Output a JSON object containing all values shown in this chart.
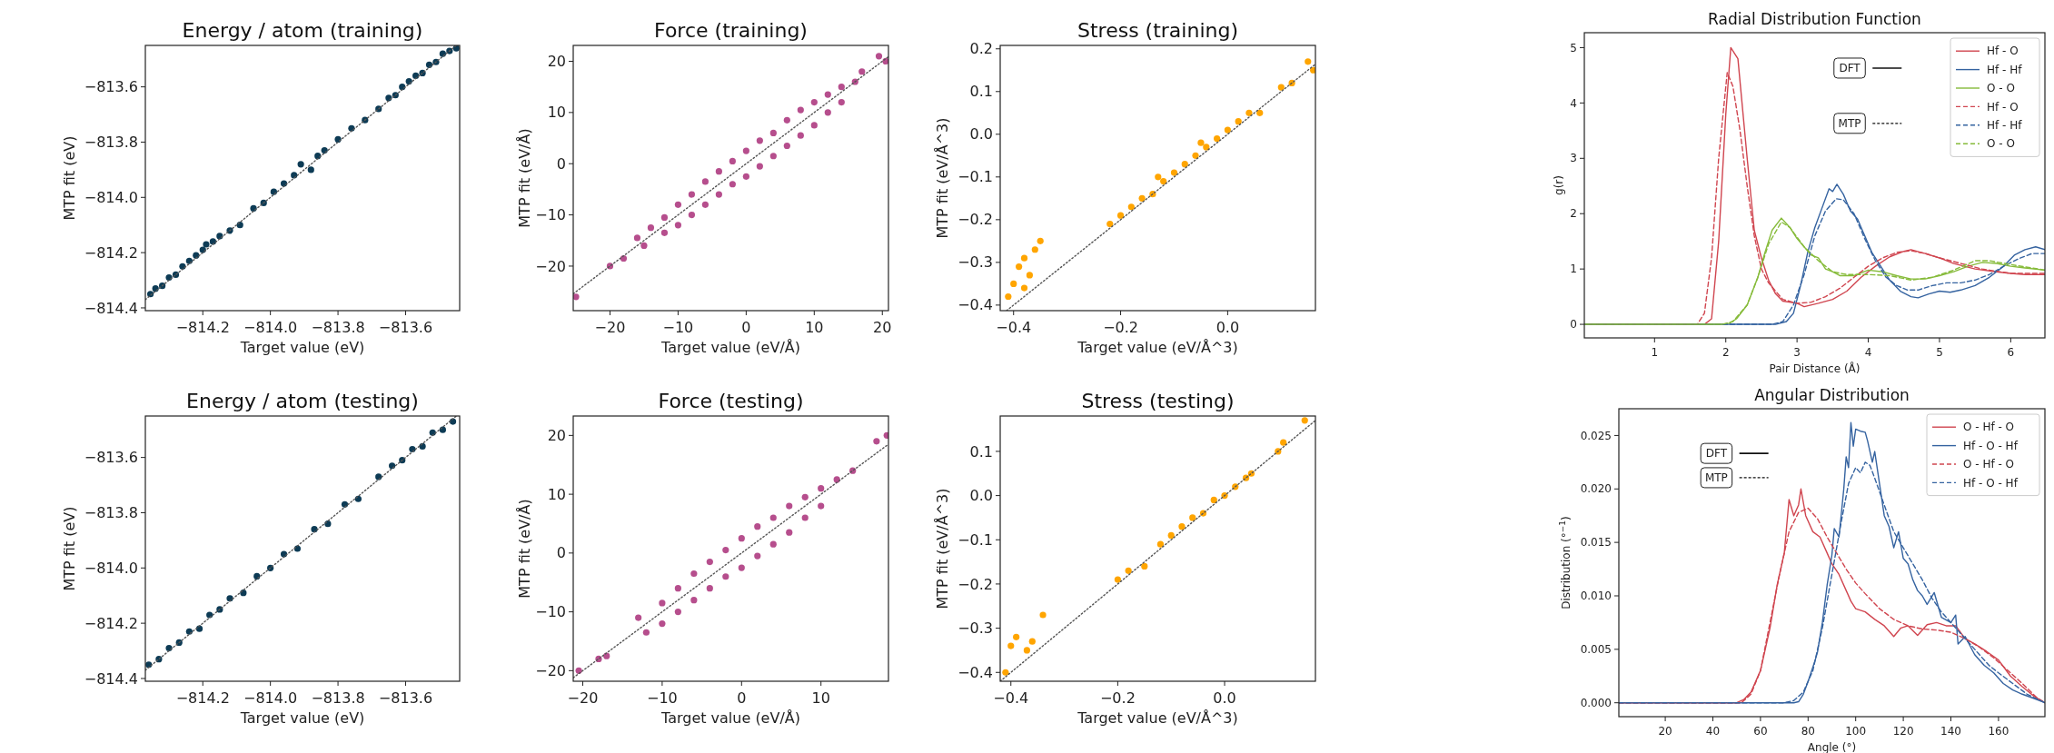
{
  "chart_data": [
    {
      "type": "scatter",
      "title": "Energy / atom (training)",
      "xlabel": "Target value (eV)",
      "ylabel": "MTP fit (eV)",
      "xlim": [
        -814.37,
        -813.44
      ],
      "ylim": [
        -814.41,
        -813.45
      ],
      "xticks": [
        {
          "value": -814.2,
          "label": "−814.2"
        },
        {
          "value": -814.0,
          "label": "−814.0"
        },
        {
          "value": -813.8,
          "label": "−813.8"
        },
        {
          "value": -813.6,
          "label": "−813.6"
        }
      ],
      "yticks": [
        {
          "value": -814.4,
          "label": "−814.4"
        },
        {
          "value": -814.2,
          "label": "−814.2"
        },
        {
          "value": -814.0,
          "label": "−814.0"
        },
        {
          "value": -813.8,
          "label": "−813.8"
        },
        {
          "value": -813.6,
          "label": "−813.6"
        }
      ],
      "series": [
        {
          "marker": "circle",
          "color": "#0d3b55",
          "x": [
            -814.355,
            -814.34,
            -814.32,
            -814.3,
            -814.28,
            -814.26,
            -814.24,
            -814.22,
            -814.2,
            -814.19,
            -814.17,
            -814.15,
            -814.12,
            -814.09,
            -814.05,
            -814.02,
            -813.99,
            -813.96,
            -813.93,
            -813.91,
            -813.88,
            -813.86,
            -813.84,
            -813.8,
            -813.76,
            -813.72,
            -813.68,
            -813.65,
            -813.63,
            -813.61,
            -813.59,
            -813.57,
            -813.55,
            -813.53,
            -813.51,
            -813.49,
            -813.47,
            -813.45
          ],
          "values": [
            -814.35,
            -814.33,
            -814.32,
            -814.29,
            -814.28,
            -814.25,
            -814.23,
            -814.21,
            -814.19,
            -814.17,
            -814.16,
            -814.14,
            -814.12,
            -814.1,
            -814.04,
            -814.02,
            -813.98,
            -813.95,
            -813.92,
            -813.88,
            -813.9,
            -813.85,
            -813.83,
            -813.79,
            -813.75,
            -813.72,
            -813.68,
            -813.64,
            -813.63,
            -813.6,
            -813.58,
            -813.56,
            -813.55,
            -813.52,
            -813.51,
            -813.48,
            -813.47,
            -813.46
          ]
        },
        {
          "type": "line",
          "line_style": "dotted",
          "color": "#555555",
          "x": [
            -814.37,
            -813.45
          ],
          "values": [
            -814.37,
            -813.45
          ]
        }
      ]
    },
    {
      "type": "scatter",
      "title": "Force (training)",
      "xlabel": "Target value (eV/Å)",
      "ylabel": "MTP fit (eV/Å)",
      "xlim": [
        -25.4,
        20.9
      ],
      "ylim": [
        -28.7,
        23.1
      ],
      "xticks": [
        {
          "value": -20,
          "label": "−20"
        },
        {
          "value": -10,
          "label": "−10"
        },
        0,
        10,
        20
      ],
      "yticks": [
        {
          "value": -20,
          "label": "−20"
        },
        {
          "value": -10,
          "label": "−10"
        },
        0,
        10,
        20
      ],
      "series": [
        {
          "marker": "circle",
          "color": "#b64e8d",
          "x": [
            -25,
            -20,
            -18,
            -16,
            -15,
            -14,
            -12,
            -12,
            -10,
            -10,
            -8,
            -8,
            -6,
            -6,
            -4,
            -4,
            -2,
            -2,
            0,
            0,
            2,
            2,
            4,
            4,
            6,
            6,
            8,
            8,
            10,
            10,
            12,
            12,
            14,
            14,
            16,
            17,
            19.5,
            20.5
          ],
          "values": [
            -26,
            -20,
            -18.5,
            -14.5,
            -16,
            -12.5,
            -10.5,
            -13.5,
            -8,
            -12,
            -6,
            -10,
            -3.5,
            -8,
            -1.5,
            -6,
            0.5,
            -4,
            2.5,
            -2.5,
            4.5,
            -0.5,
            6,
            1.5,
            8.5,
            3.5,
            10.5,
            5.5,
            12,
            7.5,
            13.5,
            10,
            15,
            12,
            16,
            18,
            21,
            20
          ]
        },
        {
          "type": "line",
          "line_style": "dotted",
          "color": "#555555",
          "x": [
            -25.4,
            20.9
          ],
          "values": [
            -25.4,
            20.9
          ]
        }
      ]
    },
    {
      "type": "scatter",
      "title": "Stress (training)",
      "xlabel": "Target value (eV/Å^3)",
      "ylabel": "MTP fit (eV/Å^3)",
      "xlim": [
        -0.425,
        0.164
      ],
      "ylim": [
        -0.413,
        0.208
      ],
      "xticks": [
        {
          "value": -0.4,
          "label": "−0.4"
        },
        {
          "value": -0.2,
          "label": "−0.2"
        },
        {
          "value": 0,
          "label": "0.0"
        }
      ],
      "yticks": [
        {
          "value": -0.4,
          "label": "−0.4"
        },
        {
          "value": -0.3,
          "label": "−0.3"
        },
        {
          "value": -0.2,
          "label": "−0.2"
        },
        {
          "value": -0.1,
          "label": "−0.1"
        },
        {
          "value": 0,
          "label": "0.0"
        },
        0.1,
        0.2
      ],
      "series": [
        {
          "marker": "circle",
          "color": "#ffa500",
          "x": [
            -0.41,
            -0.4,
            -0.39,
            -0.38,
            -0.37,
            -0.36,
            -0.35,
            -0.38,
            -0.22,
            -0.2,
            -0.18,
            -0.16,
            -0.14,
            -0.12,
            -0.1,
            -0.08,
            -0.06,
            -0.04,
            -0.02,
            0,
            0.02,
            0.04,
            0.06,
            -0.13,
            -0.05,
            0.1,
            0.12,
            0.15,
            0.16
          ],
          "values": [
            -0.38,
            -0.35,
            -0.31,
            -0.29,
            -0.33,
            -0.27,
            -0.25,
            -0.36,
            -0.21,
            -0.19,
            -0.17,
            -0.15,
            -0.14,
            -0.11,
            -0.09,
            -0.07,
            -0.05,
            -0.03,
            -0.01,
            0.01,
            0.03,
            0.05,
            0.05,
            -0.1,
            -0.02,
            0.11,
            0.12,
            0.17,
            0.15
          ]
        },
        {
          "type": "line",
          "line_style": "dotted",
          "color": "#555555",
          "x": [
            -0.413,
            0.164
          ],
          "values": [
            -0.413,
            0.164
          ]
        }
      ]
    },
    {
      "type": "line",
      "title": "Radial Distribution Function",
      "xlabel": "Pair Distance (Å)",
      "ylabel": "g(r)",
      "legend": "top right",
      "annotations": [
        "DFT",
        "MTP"
      ],
      "xlim": [
        0.014,
        6.48
      ],
      "ylim": [
        -0.245,
        5.27
      ],
      "xticks": [
        1,
        2,
        3,
        4,
        5,
        6
      ],
      "yticks": [
        0,
        1,
        2,
        3,
        4,
        5
      ],
      "series": [
        {
          "name": "Hf - O",
          "color": "#d0454f",
          "line_style": "solid",
          "x": [
            0.02,
            1.7,
            1.8,
            1.9,
            2.0,
            2.07,
            2.17,
            2.3,
            2.4,
            2.5,
            2.6,
            2.7,
            2.8,
            3.0,
            3.1,
            3.3,
            3.5,
            3.7,
            3.9,
            4.1,
            4.3,
            4.5,
            4.6,
            4.8,
            5.0,
            5.2,
            5.5,
            5.8,
            6.0,
            6.2,
            6.48
          ],
          "values": [
            0,
            0,
            0.1,
            1.5,
            3.8,
            5.0,
            4.8,
            3.0,
            1.7,
            1.2,
            0.8,
            0.55,
            0.42,
            0.38,
            0.32,
            0.38,
            0.45,
            0.6,
            0.85,
            1.05,
            1.22,
            1.32,
            1.35,
            1.28,
            1.2,
            1.1,
            1.0,
            0.95,
            0.92,
            0.9,
            0.9
          ]
        },
        {
          "name": "Hf - Hf",
          "color": "#3563a0",
          "line_style": "solid",
          "x": [
            0.02,
            2.7,
            2.85,
            2.95,
            3.05,
            3.15,
            3.25,
            3.35,
            3.45,
            3.5,
            3.56,
            3.65,
            3.75,
            3.85,
            3.95,
            4.05,
            4.15,
            4.3,
            4.45,
            4.6,
            4.7,
            4.85,
            5.0,
            5.15,
            5.3,
            5.5,
            5.7,
            5.9,
            6.05,
            6.2,
            6.35,
            6.48
          ],
          "values": [
            0,
            0,
            0.05,
            0.2,
            0.7,
            1.3,
            1.75,
            2.1,
            2.45,
            2.4,
            2.53,
            2.35,
            2.05,
            1.9,
            1.6,
            1.3,
            1.1,
            0.8,
            0.6,
            0.5,
            0.48,
            0.55,
            0.6,
            0.58,
            0.62,
            0.7,
            0.85,
            1.05,
            1.25,
            1.35,
            1.4,
            1.35
          ]
        },
        {
          "name": "O - O",
          "color": "#86bb3a",
          "line_style": "solid",
          "x": [
            0.02,
            1.95,
            2.05,
            2.15,
            2.3,
            2.45,
            2.55,
            2.65,
            2.78,
            2.9,
            3.0,
            3.1,
            3.2,
            3.3,
            3.4,
            3.5,
            3.6,
            3.8,
            4.0,
            4.2,
            4.4,
            4.6,
            4.8,
            5.0,
            5.2,
            5.4,
            5.6,
            5.8,
            6.0,
            6.2,
            6.48
          ],
          "values": [
            0,
            0,
            0.02,
            0.1,
            0.35,
            0.85,
            1.3,
            1.7,
            1.92,
            1.75,
            1.55,
            1.4,
            1.25,
            1.2,
            1.0,
            0.95,
            0.88,
            0.88,
            0.98,
            0.95,
            0.88,
            0.82,
            0.82,
            0.88,
            0.95,
            1.05,
            1.12,
            1.1,
            1.05,
            1.02,
            0.98
          ]
        },
        {
          "name": "Hf - O",
          "color": "#d0454f",
          "line_style": "dashed",
          "x": [
            0.02,
            1.6,
            1.7,
            1.8,
            1.9,
            2.02,
            2.1,
            2.2,
            2.3,
            2.4,
            2.5,
            2.6,
            2.8,
            3.0,
            3.2,
            3.4,
            3.6,
            3.8,
            4.0,
            4.2,
            4.4,
            4.6,
            4.8,
            5.0,
            5.3,
            5.6,
            6.0,
            6.48
          ],
          "values": [
            0,
            0,
            0.2,
            1.2,
            3.0,
            4.55,
            4.3,
            3.5,
            2.5,
            1.6,
            1.0,
            0.75,
            0.45,
            0.38,
            0.4,
            0.5,
            0.65,
            0.85,
            1.05,
            1.2,
            1.3,
            1.33,
            1.28,
            1.2,
            1.1,
            1.0,
            0.92,
            0.92
          ]
        },
        {
          "name": "Hf - Hf",
          "color": "#3563a0",
          "line_style": "dashed",
          "x": [
            0.02,
            2.65,
            2.8,
            2.95,
            3.1,
            3.25,
            3.4,
            3.55,
            3.65,
            3.8,
            3.95,
            4.1,
            4.25,
            4.4,
            4.55,
            4.7,
            4.9,
            5.1,
            5.3,
            5.5,
            5.7,
            5.9,
            6.1,
            6.3,
            6.48
          ],
          "values": [
            0,
            0,
            0.05,
            0.35,
            0.9,
            1.6,
            2.05,
            2.27,
            2.25,
            2.0,
            1.55,
            1.15,
            0.85,
            0.7,
            0.62,
            0.62,
            0.7,
            0.75,
            0.75,
            0.8,
            0.9,
            1.05,
            1.18,
            1.28,
            1.28
          ]
        },
        {
          "name": "O - O",
          "color": "#86bb3a",
          "line_style": "dashed",
          "x": [
            0.02,
            1.95,
            2.1,
            2.3,
            2.45,
            2.6,
            2.78,
            2.9,
            3.1,
            3.3,
            3.5,
            3.7,
            4.0,
            4.3,
            4.6,
            4.9,
            5.2,
            5.5,
            5.7,
            6.0,
            6.48
          ],
          "values": [
            0,
            0,
            0.05,
            0.35,
            0.85,
            1.45,
            1.85,
            1.75,
            1.4,
            1.15,
            0.95,
            0.9,
            0.9,
            0.88,
            0.8,
            0.85,
            0.98,
            1.15,
            1.15,
            1.08,
            0.98
          ]
        }
      ]
    },
    {
      "type": "scatter",
      "title": "Energy / atom (testing)",
      "xlabel": "Target value (eV)",
      "ylabel": "MTP fit (eV)",
      "xlim": [
        -814.37,
        -813.44
      ],
      "ylim": [
        -814.41,
        -813.45
      ],
      "xticks": [
        {
          "value": -814.2,
          "label": "−814.2"
        },
        {
          "value": -814.0,
          "label": "−814.0"
        },
        {
          "value": -813.8,
          "label": "−813.8"
        },
        {
          "value": -813.6,
          "label": "−813.6"
        }
      ],
      "yticks": [
        {
          "value": -814.4,
          "label": "−814.4"
        },
        {
          "value": -814.2,
          "label": "−814.2"
        },
        {
          "value": -814.0,
          "label": "−814.0"
        },
        {
          "value": -813.8,
          "label": "−813.8"
        },
        {
          "value": -813.6,
          "label": "−813.6"
        }
      ],
      "series": [
        {
          "marker": "circle",
          "color": "#0d3b55",
          "x": [
            -814.36,
            -814.33,
            -814.3,
            -814.27,
            -814.24,
            -814.21,
            -814.18,
            -814.15,
            -814.12,
            -814.08,
            -814.04,
            -814.0,
            -813.96,
            -813.92,
            -813.87,
            -813.83,
            -813.78,
            -813.74,
            -813.68,
            -813.64,
            -813.61,
            -813.58,
            -813.55,
            -813.52,
            -813.49,
            -813.46
          ],
          "values": [
            -814.35,
            -814.33,
            -814.29,
            -814.27,
            -814.23,
            -814.22,
            -814.17,
            -814.15,
            -814.11,
            -814.09,
            -814.03,
            -814.0,
            -813.95,
            -813.93,
            -813.86,
            -813.84,
            -813.77,
            -813.75,
            -813.67,
            -813.63,
            -813.61,
            -813.57,
            -813.56,
            -813.51,
            -813.5,
            -813.47
          ]
        },
        {
          "type": "line",
          "line_style": "dotted",
          "color": "#555555",
          "x": [
            -814.37,
            -813.45
          ],
          "values": [
            -814.37,
            -813.45
          ]
        }
      ]
    },
    {
      "type": "scatter",
      "title": "Force (testing)",
      "xlabel": "Target value (eV/Å)",
      "ylabel": "MTP fit (eV/Å)",
      "xlim": [
        -21.2,
        18.5
      ],
      "ylim": [
        -21.8,
        23.3
      ],
      "xticks": [
        {
          "value": -20,
          "label": "−20"
        },
        {
          "value": -10,
          "label": "−10"
        },
        0,
        10
      ],
      "yticks": [
        {
          "value": -20,
          "label": "−20"
        },
        {
          "value": -10,
          "label": "−10"
        },
        0,
        10,
        20
      ],
      "series": [
        {
          "marker": "circle",
          "color": "#b64e8d",
          "x": [
            -20.5,
            -18,
            -17,
            -13,
            -12,
            -10,
            -10,
            -8,
            -8,
            -6,
            -6,
            -4,
            -4,
            -2,
            -2,
            0,
            0,
            2,
            2,
            4,
            4,
            6,
            6,
            8,
            8,
            10,
            10,
            12,
            14,
            17,
            18.3
          ],
          "values": [
            -20,
            -18,
            -17.5,
            -11,
            -13.5,
            -8.5,
            -12,
            -6,
            -10,
            -3.5,
            -8,
            -1.5,
            -6,
            0.5,
            -4,
            2.5,
            -2.5,
            4.5,
            -0.5,
            6,
            1.5,
            8,
            3.5,
            9.5,
            6,
            11,
            8,
            12.5,
            14,
            19,
            20
          ]
        },
        {
          "type": "line",
          "line_style": "dotted",
          "color": "#555555",
          "x": [
            -21.2,
            18.5
          ],
          "values": [
            -21.2,
            18.5
          ]
        }
      ]
    },
    {
      "type": "scatter",
      "title": "Stress (testing)",
      "xlabel": "Target value (eV/Å^3)",
      "ylabel": "MTP fit (eV/Å^3)",
      "xlim": [
        -0.42,
        0.17
      ],
      "ylim": [
        -0.42,
        0.18
      ],
      "xticks": [
        {
          "value": -0.4,
          "label": "−0.4"
        },
        {
          "value": -0.2,
          "label": "−0.2"
        },
        {
          "value": 0,
          "label": "0.0"
        }
      ],
      "yticks": [
        {
          "value": -0.4,
          "label": "−0.4"
        },
        {
          "value": -0.3,
          "label": "−0.3"
        },
        {
          "value": -0.2,
          "label": "−0.2"
        },
        {
          "value": -0.1,
          "label": "−0.1"
        },
        {
          "value": 0,
          "label": "0.0"
        },
        0.1
      ],
      "series": [
        {
          "marker": "circle",
          "color": "#ffa500",
          "x": [
            -0.41,
            -0.4,
            -0.39,
            -0.37,
            -0.36,
            -0.34,
            -0.2,
            -0.18,
            -0.15,
            -0.12,
            -0.1,
            -0.08,
            -0.06,
            -0.04,
            -0.02,
            0,
            0.02,
            0.04,
            0.05,
            0.1,
            0.11,
            0.15
          ],
          "values": [
            -0.4,
            -0.34,
            -0.32,
            -0.35,
            -0.33,
            -0.27,
            -0.19,
            -0.17,
            -0.16,
            -0.11,
            -0.09,
            -0.07,
            -0.05,
            -0.04,
            -0.01,
            0,
            0.02,
            0.04,
            0.05,
            0.1,
            0.12,
            0.17
          ]
        },
        {
          "type": "line",
          "line_style": "dotted",
          "color": "#555555",
          "x": [
            -0.42,
            0.17
          ],
          "values": [
            -0.42,
            0.17
          ]
        }
      ]
    },
    {
      "type": "line",
      "title": "Angular Distribution",
      "xlabel": "Angle (°)",
      "ylabel": "Distribution (°$^{−1}$)",
      "legend": "top right",
      "annotations": [
        "DFT",
        "MTP"
      ],
      "xlim": [
        0.5,
        179.5
      ],
      "ylim": [
        -0.0013,
        0.0275
      ],
      "xticks": [
        20,
        40,
        60,
        80,
        100,
        120,
        140,
        160
      ],
      "yticks": [
        {
          "value": 0,
          "label": "0.000"
        },
        {
          "value": 0.005,
          "label": "0.005"
        },
        {
          "value": 0.01,
          "label": "0.010"
        },
        {
          "value": 0.015,
          "label": "0.015"
        },
        {
          "value": 0.02,
          "label": "0.020"
        },
        {
          "value": 0.025,
          "label": "0.025"
        }
      ],
      "series": [
        {
          "name": "O - Hf - O",
          "color": "#d0454f",
          "line_style": "solid",
          "x": [
            0.5,
            50,
            53,
            56,
            60,
            64,
            67,
            70,
            72,
            74,
            76,
            77,
            79,
            82,
            85,
            88,
            90,
            93,
            96,
            98,
            100,
            104,
            108,
            112,
            116,
            119,
            122,
            126,
            130,
            134,
            138,
            142,
            146,
            150,
            155,
            160,
            165,
            170,
            175,
            179.5
          ],
          "values": [
            0,
            0,
            0.0003,
            0.001,
            0.003,
            0.007,
            0.011,
            0.014,
            0.019,
            0.0175,
            0.0185,
            0.02,
            0.0175,
            0.016,
            0.0155,
            0.014,
            0.013,
            0.012,
            0.0105,
            0.0095,
            0.0088,
            0.0085,
            0.0078,
            0.0072,
            0.0062,
            0.007,
            0.0072,
            0.0063,
            0.0073,
            0.0075,
            0.0072,
            0.0072,
            0.006,
            0.0055,
            0.0048,
            0.004,
            0.0025,
            0.0015,
            0.0006,
            0
          ]
        },
        {
          "name": "Hf - O - Hf",
          "color": "#3563a0",
          "line_style": "solid",
          "x": [
            0.5,
            74,
            76,
            78,
            80,
            83,
            84,
            86,
            88,
            90,
            91,
            93,
            95,
            96,
            97,
            98,
            99,
            100,
            102,
            104,
            105,
            107,
            108,
            110,
            112,
            114,
            116,
            118,
            120,
            122,
            124,
            126,
            128,
            130,
            133,
            136,
            140,
            142,
            143,
            146,
            150,
            154,
            158,
            162,
            166,
            170,
            175,
            179.5
          ],
          "values": [
            0,
            0,
            0.0001,
            0.0008,
            0.002,
            0.004,
            0.0048,
            0.0075,
            0.011,
            0.0138,
            0.0163,
            0.0155,
            0.02,
            0.023,
            0.022,
            0.0262,
            0.024,
            0.0256,
            0.0254,
            0.0253,
            0.0245,
            0.0225,
            0.0235,
            0.0205,
            0.0175,
            0.0165,
            0.0145,
            0.016,
            0.0135,
            0.013,
            0.0115,
            0.0105,
            0.01,
            0.0092,
            0.0103,
            0.008,
            0.0075,
            0.0082,
            0.0055,
            0.0062,
            0.0045,
            0.0035,
            0.0028,
            0.0018,
            0.0012,
            0.0008,
            0.0004,
            0
          ]
        },
        {
          "name": "O - Hf - O",
          "color": "#d0454f",
          "line_style": "dashed",
          "x": [
            0.5,
            52,
            56,
            60,
            64,
            68,
            72,
            76,
            80,
            84,
            88,
            92,
            96,
            100,
            104,
            110,
            116,
            122,
            128,
            134,
            140,
            146,
            152,
            158,
            164,
            170,
            176,
            179.5
          ],
          "values": [
            0,
            0,
            0.0008,
            0.003,
            0.0075,
            0.012,
            0.016,
            0.0178,
            0.0182,
            0.0172,
            0.0155,
            0.014,
            0.0125,
            0.0112,
            0.0102,
            0.0088,
            0.0078,
            0.0072,
            0.0069,
            0.0068,
            0.0066,
            0.006,
            0.0052,
            0.0042,
            0.003,
            0.0018,
            0.0005,
            0
          ]
        },
        {
          "name": "Hf - O - Hf",
          "color": "#3563a0",
          "line_style": "dashed",
          "x": [
            0.5,
            70,
            74,
            78,
            82,
            86,
            90,
            94,
            97,
            100,
            102,
            104,
            106,
            108,
            112,
            116,
            120,
            124,
            128,
            132,
            136,
            140,
            144,
            148,
            152,
            156,
            160,
            166,
            172,
            179.5
          ],
          "values": [
            0,
            0,
            0.0002,
            0.001,
            0.003,
            0.007,
            0.012,
            0.017,
            0.0205,
            0.022,
            0.0215,
            0.0225,
            0.0222,
            0.021,
            0.0185,
            0.016,
            0.0145,
            0.013,
            0.0115,
            0.0098,
            0.0085,
            0.0075,
            0.0065,
            0.0055,
            0.0045,
            0.0035,
            0.0028,
            0.0018,
            0.0008,
            0
          ]
        }
      ]
    }
  ]
}
